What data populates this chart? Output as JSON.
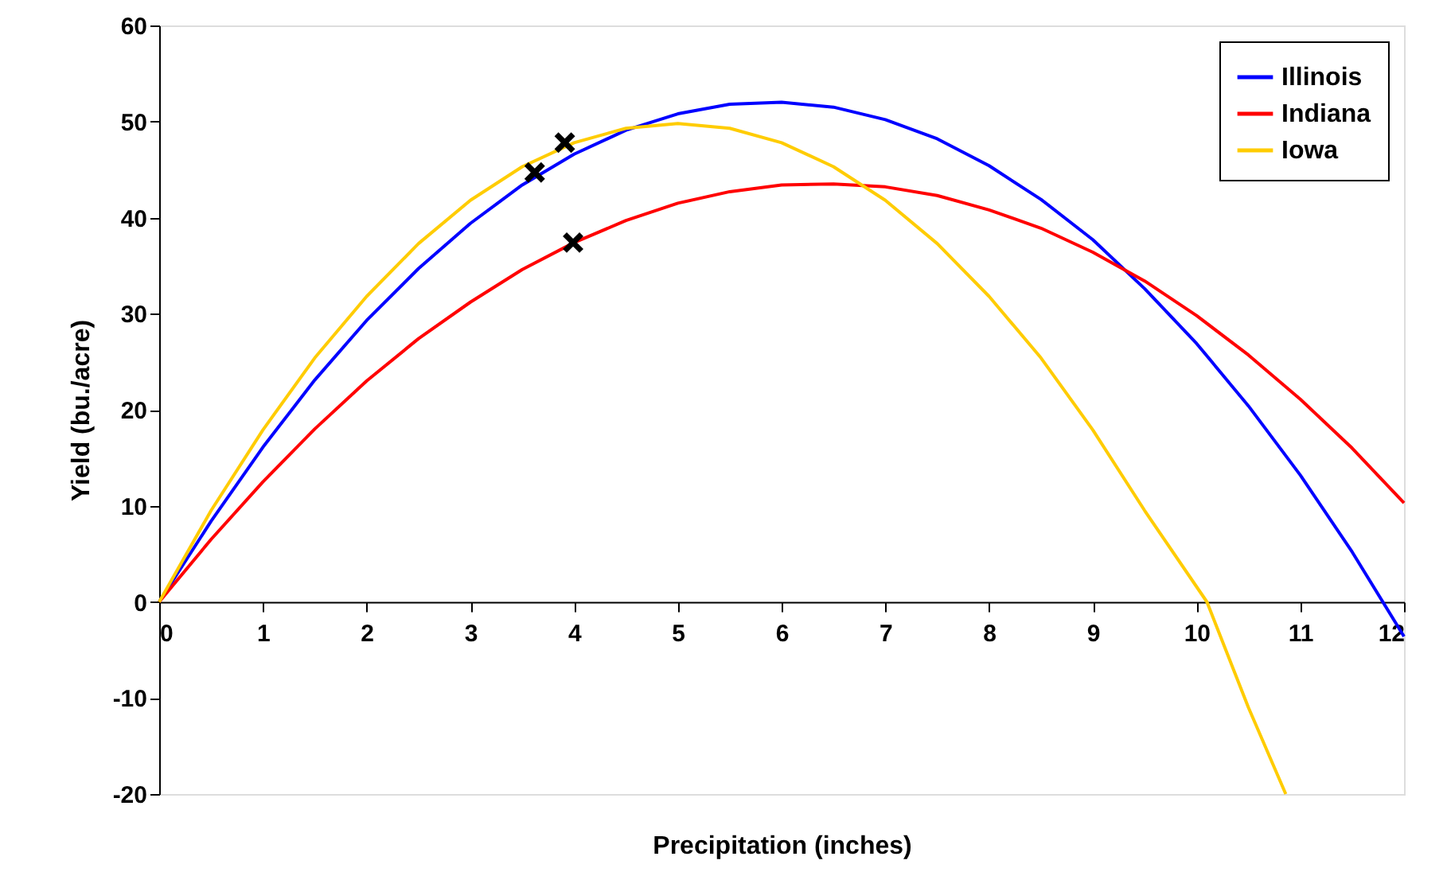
{
  "chart_data": {
    "type": "line",
    "xlabel": "Precipitation (inches)",
    "ylabel": "Yield (bu./acre)",
    "xlim": [
      0,
      12
    ],
    "xticks": [
      0,
      1,
      2,
      3,
      4,
      5,
      6,
      7,
      8,
      9,
      10,
      11,
      12
    ],
    "ylim": [
      -20,
      60
    ],
    "yticks": [
      -20,
      -10,
      0,
      10,
      20,
      30,
      40,
      50,
      60
    ],
    "grid": false,
    "legend": "top right",
    "marker": "none",
    "line_style": "solid",
    "series": [
      {
        "name": "Illinois",
        "color": "#0000ff",
        "x": [
          0,
          0.5,
          1,
          1.5,
          2,
          2.5,
          3,
          3.5,
          4,
          4.5,
          5,
          5.5,
          6,
          6.5,
          7,
          7.5,
          8,
          8.5,
          9,
          9.5,
          10,
          10.5,
          11,
          11.5,
          12
        ],
        "values": [
          0,
          8.4,
          16.1,
          23.1,
          29.3,
          34.7,
          39.4,
          43.4,
          46.6,
          49.1,
          50.8,
          51.8,
          52.0,
          51.5,
          50.2,
          48.2,
          45.4,
          41.9,
          37.7,
          32.6,
          26.9,
          20.4,
          13.2,
          5.2,
          -3.6
        ]
      },
      {
        "name": "Indiana",
        "color": "#ff0000",
        "x": [
          0,
          0.5,
          1,
          1.5,
          2,
          2.5,
          3,
          3.5,
          4,
          4.5,
          5,
          5.5,
          6,
          6.5,
          7,
          7.5,
          8,
          8.5,
          9,
          9.5,
          10,
          10.5,
          11,
          11.5,
          12
        ],
        "values": [
          0,
          6.5,
          12.5,
          18.0,
          23.0,
          27.4,
          31.2,
          34.6,
          37.4,
          39.7,
          41.5,
          42.7,
          43.4,
          43.5,
          43.2,
          42.3,
          40.8,
          38.9,
          36.4,
          33.4,
          29.8,
          25.7,
          21.1,
          16.0,
          10.3
        ]
      },
      {
        "name": "Iowa",
        "color": "#ffcc00",
        "x": [
          0,
          0.5,
          1,
          1.5,
          2,
          2.5,
          3,
          3.5,
          4,
          4.5,
          5,
          5.5,
          6,
          6.5,
          7,
          7.5,
          8,
          8.5,
          9,
          9.5,
          10.1,
          10.5,
          10.86
        ],
        "values": [
          0,
          9.5,
          17.9,
          25.4,
          31.8,
          37.3,
          41.8,
          45.3,
          47.8,
          49.3,
          49.8,
          49.3,
          47.8,
          45.3,
          41.8,
          37.3,
          31.8,
          25.4,
          17.9,
          9.5,
          0,
          -11,
          -20
        ]
      },
      {
        "type": "scatter",
        "marker": "cross",
        "color": "#000000",
        "x": [
          3.62,
          3.91,
          3.99
        ],
        "values": [
          44.7,
          47.8,
          37.4
        ]
      }
    ]
  }
}
